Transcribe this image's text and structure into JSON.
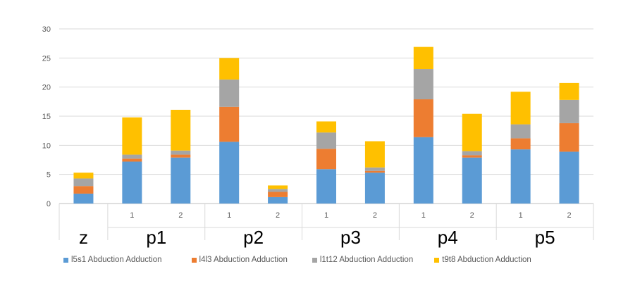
{
  "chart_data": {
    "type": "bar",
    "stacked": true,
    "groups": [
      "z",
      "p1",
      "p2",
      "p3",
      "p4",
      "p5"
    ],
    "subcategories": [
      {
        "group": "z",
        "label": ""
      },
      {
        "group": "p1",
        "label": "1"
      },
      {
        "group": "p1",
        "label": "2"
      },
      {
        "group": "p2",
        "label": "1"
      },
      {
        "group": "p2",
        "label": "2"
      },
      {
        "group": "p3",
        "label": "1"
      },
      {
        "group": "p3",
        "label": "2"
      },
      {
        "group": "p4",
        "label": "1"
      },
      {
        "group": "p4",
        "label": "2"
      },
      {
        "group": "p5",
        "label": "1"
      },
      {
        "group": "p5",
        "label": "2"
      }
    ],
    "series": [
      {
        "name": "l5s1 Abduction Adduction",
        "color": "#5B9BD5",
        "values": [
          1.7,
          7.2,
          7.9,
          10.6,
          1.1,
          5.9,
          5.3,
          11.4,
          7.9,
          9.3,
          8.9
        ]
      },
      {
        "name": "l4l3 Abduction Adduction",
        "color": "#ED7D31",
        "values": [
          1.3,
          0.5,
          0.5,
          6.0,
          0.9,
          3.5,
          0.3,
          6.5,
          0.4,
          1.9,
          4.9
        ]
      },
      {
        "name": "l1t12 Abduction Adduction",
        "color": "#A5A5A5",
        "values": [
          1.3,
          0.7,
          0.7,
          4.7,
          0.5,
          2.8,
          0.6,
          5.2,
          0.7,
          2.4,
          4.0
        ]
      },
      {
        "name": "t9t8 Abduction Adduction",
        "color": "#FFC000",
        "values": [
          1.0,
          6.4,
          7.0,
          3.7,
          0.6,
          1.9,
          4.5,
          3.8,
          6.4,
          5.6,
          2.9
        ]
      }
    ],
    "ylim": [
      0,
      30
    ],
    "yticks": [
      0,
      5,
      10,
      15,
      20,
      25,
      30
    ],
    "grid": true,
    "legend_position": "bottom",
    "title": "",
    "xlabel": "",
    "ylabel": ""
  }
}
